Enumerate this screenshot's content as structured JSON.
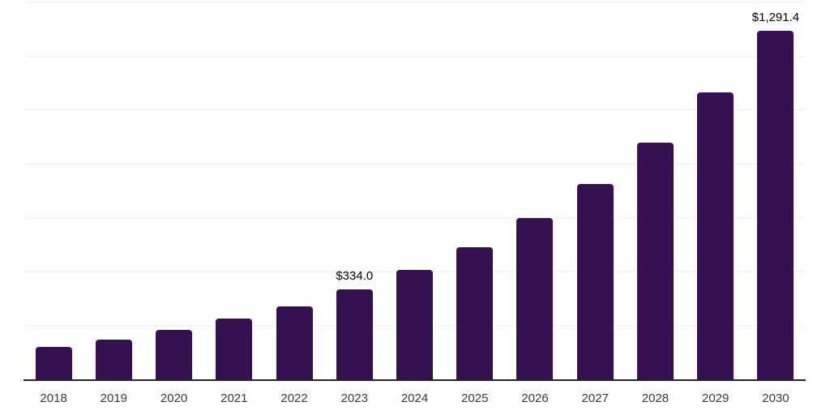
{
  "chart_data": {
    "type": "bar",
    "title": "",
    "xlabel": "",
    "ylabel": "",
    "categories": [
      "2018",
      "2019",
      "2020",
      "2021",
      "2022",
      "2023",
      "2024",
      "2025",
      "2026",
      "2027",
      "2028",
      "2029",
      "2030"
    ],
    "values": [
      120,
      147,
      182,
      226,
      270,
      334.0,
      405,
      491,
      597,
      723,
      876,
      1063,
      1291.4
    ],
    "data_labels": [
      "",
      "",
      "",
      "",
      "",
      "$334.0",
      "",
      "",
      "",
      "",
      "",
      "",
      "$1,291.4"
    ],
    "ylim": [
      0,
      1400
    ],
    "grid_step": 200,
    "grid": true,
    "legend": false,
    "colors": {
      "bar": "#361152",
      "grid": "#f1f1f2",
      "axis": "#262626",
      "tick_label": "#3a3a3a",
      "value_label": "#000000",
      "background": "#ffffff"
    }
  }
}
